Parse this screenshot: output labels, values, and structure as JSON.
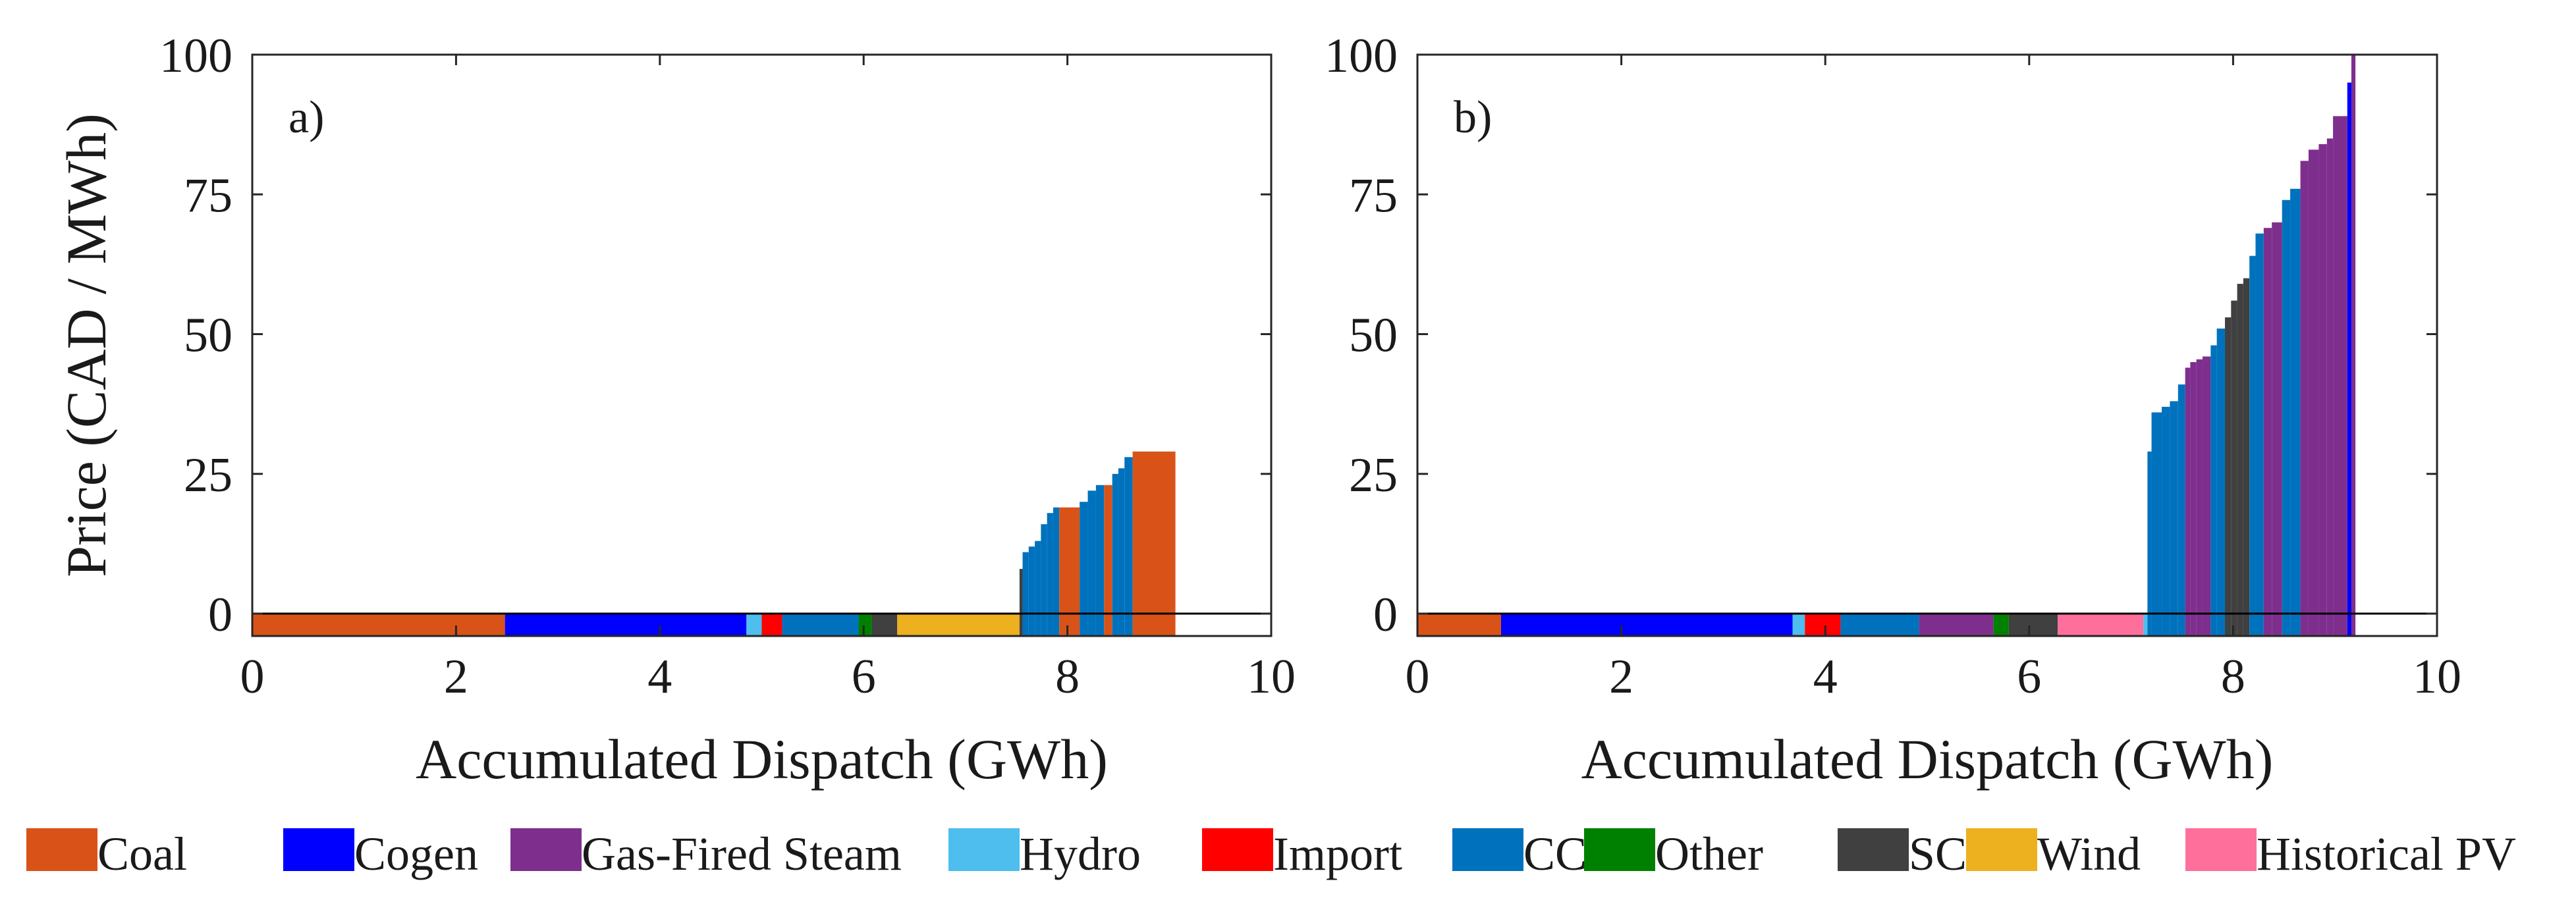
{
  "figure": {
    "legend": [
      {
        "key": "coal",
        "label": "Coal",
        "color": "#D95319"
      },
      {
        "key": "cogen",
        "label": "Cogen",
        "color": "#0000FF"
      },
      {
        "key": "gas_steam",
        "label": "Gas-Fired Steam",
        "color": "#7E2F8E"
      },
      {
        "key": "hydro",
        "label": "Hydro",
        "color": "#4DBEEE"
      },
      {
        "key": "import",
        "label": "Import",
        "color": "#FF0000"
      },
      {
        "key": "cc",
        "label": "CC",
        "color": "#0072BD"
      },
      {
        "key": "other",
        "label": "Other",
        "color": "#008000"
      },
      {
        "key": "sc",
        "label": "SC",
        "color": "#404040"
      },
      {
        "key": "wind",
        "label": "Wind",
        "color": "#EDB120"
      },
      {
        "key": "pv",
        "label": "Historical PV",
        "color": "#FF6F9C"
      }
    ]
  },
  "chart_data": [
    {
      "type": "bar",
      "panel_label": "a)",
      "xlabel": "Accumulated Dispatch (GWh)",
      "ylabel": "Price (CAD / MWh)",
      "xlim": [
        0,
        10
      ],
      "ylim": [
        -4,
        100
      ],
      "xticks": [
        0,
        2,
        4,
        6,
        8,
        10
      ],
      "yticks": [
        0,
        25,
        50,
        75,
        100
      ],
      "segments": [
        {
          "type": "coal",
          "x0": 0.0,
          "x1": 2.48,
          "price": -4
        },
        {
          "type": "cogen",
          "x0": 2.48,
          "x1": 4.85,
          "price": -4
        },
        {
          "type": "hydro",
          "x0": 4.85,
          "x1": 5.0,
          "price": -4
        },
        {
          "type": "import",
          "x0": 5.0,
          "x1": 5.2,
          "price": -4
        },
        {
          "type": "cc",
          "x0": 5.2,
          "x1": 5.95,
          "price": -4
        },
        {
          "type": "other",
          "x0": 5.95,
          "x1": 6.08,
          "price": -4
        },
        {
          "type": "sc",
          "x0": 6.08,
          "x1": 6.33,
          "price": -4
        },
        {
          "type": "wind",
          "x0": 6.33,
          "x1": 7.53,
          "price": -4
        },
        {
          "type": "sc",
          "x0": 7.53,
          "x1": 7.56,
          "price": 8
        },
        {
          "type": "cc",
          "x0": 7.56,
          "x1": 7.62,
          "price": 11
        },
        {
          "type": "cc",
          "x0": 7.62,
          "x1": 7.68,
          "price": 12
        },
        {
          "type": "cc",
          "x0": 7.68,
          "x1": 7.74,
          "price": 13
        },
        {
          "type": "cc",
          "x0": 7.74,
          "x1": 7.8,
          "price": 16
        },
        {
          "type": "cc",
          "x0": 7.8,
          "x1": 7.86,
          "price": 18
        },
        {
          "type": "cc",
          "x0": 7.86,
          "x1": 7.92,
          "price": 19
        },
        {
          "type": "coal",
          "x0": 7.92,
          "x1": 8.12,
          "price": 19
        },
        {
          "type": "cc",
          "x0": 8.12,
          "x1": 8.2,
          "price": 20
        },
        {
          "type": "cc",
          "x0": 8.2,
          "x1": 8.28,
          "price": 22
        },
        {
          "type": "cc",
          "x0": 8.28,
          "x1": 8.36,
          "price": 23
        },
        {
          "type": "coal",
          "x0": 8.36,
          "x1": 8.44,
          "price": 23
        },
        {
          "type": "cc",
          "x0": 8.44,
          "x1": 8.5,
          "price": 25
        },
        {
          "type": "cc",
          "x0": 8.5,
          "x1": 8.56,
          "price": 26
        },
        {
          "type": "cc",
          "x0": 8.56,
          "x1": 8.64,
          "price": 28
        },
        {
          "type": "coal",
          "x0": 8.64,
          "x1": 9.06,
          "price": 29
        }
      ]
    },
    {
      "type": "bar",
      "panel_label": "b)",
      "xlabel": "Accumulated Dispatch (GWh)",
      "ylabel": "",
      "xlim": [
        0,
        10
      ],
      "ylim": [
        -4,
        100
      ],
      "xticks": [
        0,
        2,
        4,
        6,
        8,
        10
      ],
      "yticks": [
        0,
        25,
        50,
        75,
        100
      ],
      "segments": [
        {
          "type": "coal",
          "x0": 0.0,
          "x1": 0.82,
          "price": -4
        },
        {
          "type": "cogen",
          "x0": 0.82,
          "x1": 3.68,
          "price": -4
        },
        {
          "type": "hydro",
          "x0": 3.68,
          "x1": 3.8,
          "price": -4
        },
        {
          "type": "import",
          "x0": 3.8,
          "x1": 4.15,
          "price": -4
        },
        {
          "type": "cc",
          "x0": 4.15,
          "x1": 4.92,
          "price": -4
        },
        {
          "type": "gas_steam",
          "x0": 4.92,
          "x1": 5.65,
          "price": -4
        },
        {
          "type": "other",
          "x0": 5.65,
          "x1": 5.8,
          "price": -4
        },
        {
          "type": "sc",
          "x0": 5.8,
          "x1": 6.28,
          "price": -4
        },
        {
          "type": "pv",
          "x0": 6.28,
          "x1": 7.12,
          "price": -4
        },
        {
          "type": "hydro",
          "x0": 7.12,
          "x1": 7.16,
          "price": -4
        },
        {
          "type": "cc",
          "x0": 7.16,
          "x1": 7.2,
          "price": 29
        },
        {
          "type": "cc",
          "x0": 7.2,
          "x1": 7.3,
          "price": 36
        },
        {
          "type": "cc",
          "x0": 7.3,
          "x1": 7.38,
          "price": 37
        },
        {
          "type": "cc",
          "x0": 7.38,
          "x1": 7.46,
          "price": 38
        },
        {
          "type": "cc",
          "x0": 7.46,
          "x1": 7.53,
          "price": 41
        },
        {
          "type": "gas_steam",
          "x0": 7.53,
          "x1": 7.58,
          "price": 44
        },
        {
          "type": "gas_steam",
          "x0": 7.58,
          "x1": 7.64,
          "price": 45
        },
        {
          "type": "gas_steam",
          "x0": 7.64,
          "x1": 7.7,
          "price": 45.5
        },
        {
          "type": "gas_steam",
          "x0": 7.7,
          "x1": 7.78,
          "price": 46
        },
        {
          "type": "cc",
          "x0": 7.78,
          "x1": 7.84,
          "price": 48
        },
        {
          "type": "cc",
          "x0": 7.84,
          "x1": 7.92,
          "price": 51
        },
        {
          "type": "sc",
          "x0": 7.92,
          "x1": 7.98,
          "price": 53
        },
        {
          "type": "sc",
          "x0": 7.98,
          "x1": 8.04,
          "price": 56
        },
        {
          "type": "sc",
          "x0": 8.04,
          "x1": 8.1,
          "price": 59
        },
        {
          "type": "sc",
          "x0": 8.1,
          "x1": 8.16,
          "price": 60
        },
        {
          "type": "cc",
          "x0": 8.16,
          "x1": 8.22,
          "price": 64
        },
        {
          "type": "cc",
          "x0": 8.22,
          "x1": 8.3,
          "price": 68
        },
        {
          "type": "gas_steam",
          "x0": 8.3,
          "x1": 8.38,
          "price": 69
        },
        {
          "type": "gas_steam",
          "x0": 8.38,
          "x1": 8.48,
          "price": 70
        },
        {
          "type": "cc",
          "x0": 8.48,
          "x1": 8.56,
          "price": 74
        },
        {
          "type": "cc",
          "x0": 8.56,
          "x1": 8.66,
          "price": 76
        },
        {
          "type": "gas_steam",
          "x0": 8.66,
          "x1": 8.74,
          "price": 81
        },
        {
          "type": "gas_steam",
          "x0": 8.74,
          "x1": 8.84,
          "price": 83
        },
        {
          "type": "gas_steam",
          "x0": 8.84,
          "x1": 8.92,
          "price": 84
        },
        {
          "type": "gas_steam",
          "x0": 8.92,
          "x1": 8.98,
          "price": 85
        },
        {
          "type": "gas_steam",
          "x0": 8.98,
          "x1": 9.12,
          "price": 89
        },
        {
          "type": "cogen",
          "x0": 9.12,
          "x1": 9.16,
          "price": 95
        },
        {
          "type": "gas_steam",
          "x0": 9.16,
          "x1": 9.2,
          "price": 100
        }
      ]
    }
  ]
}
